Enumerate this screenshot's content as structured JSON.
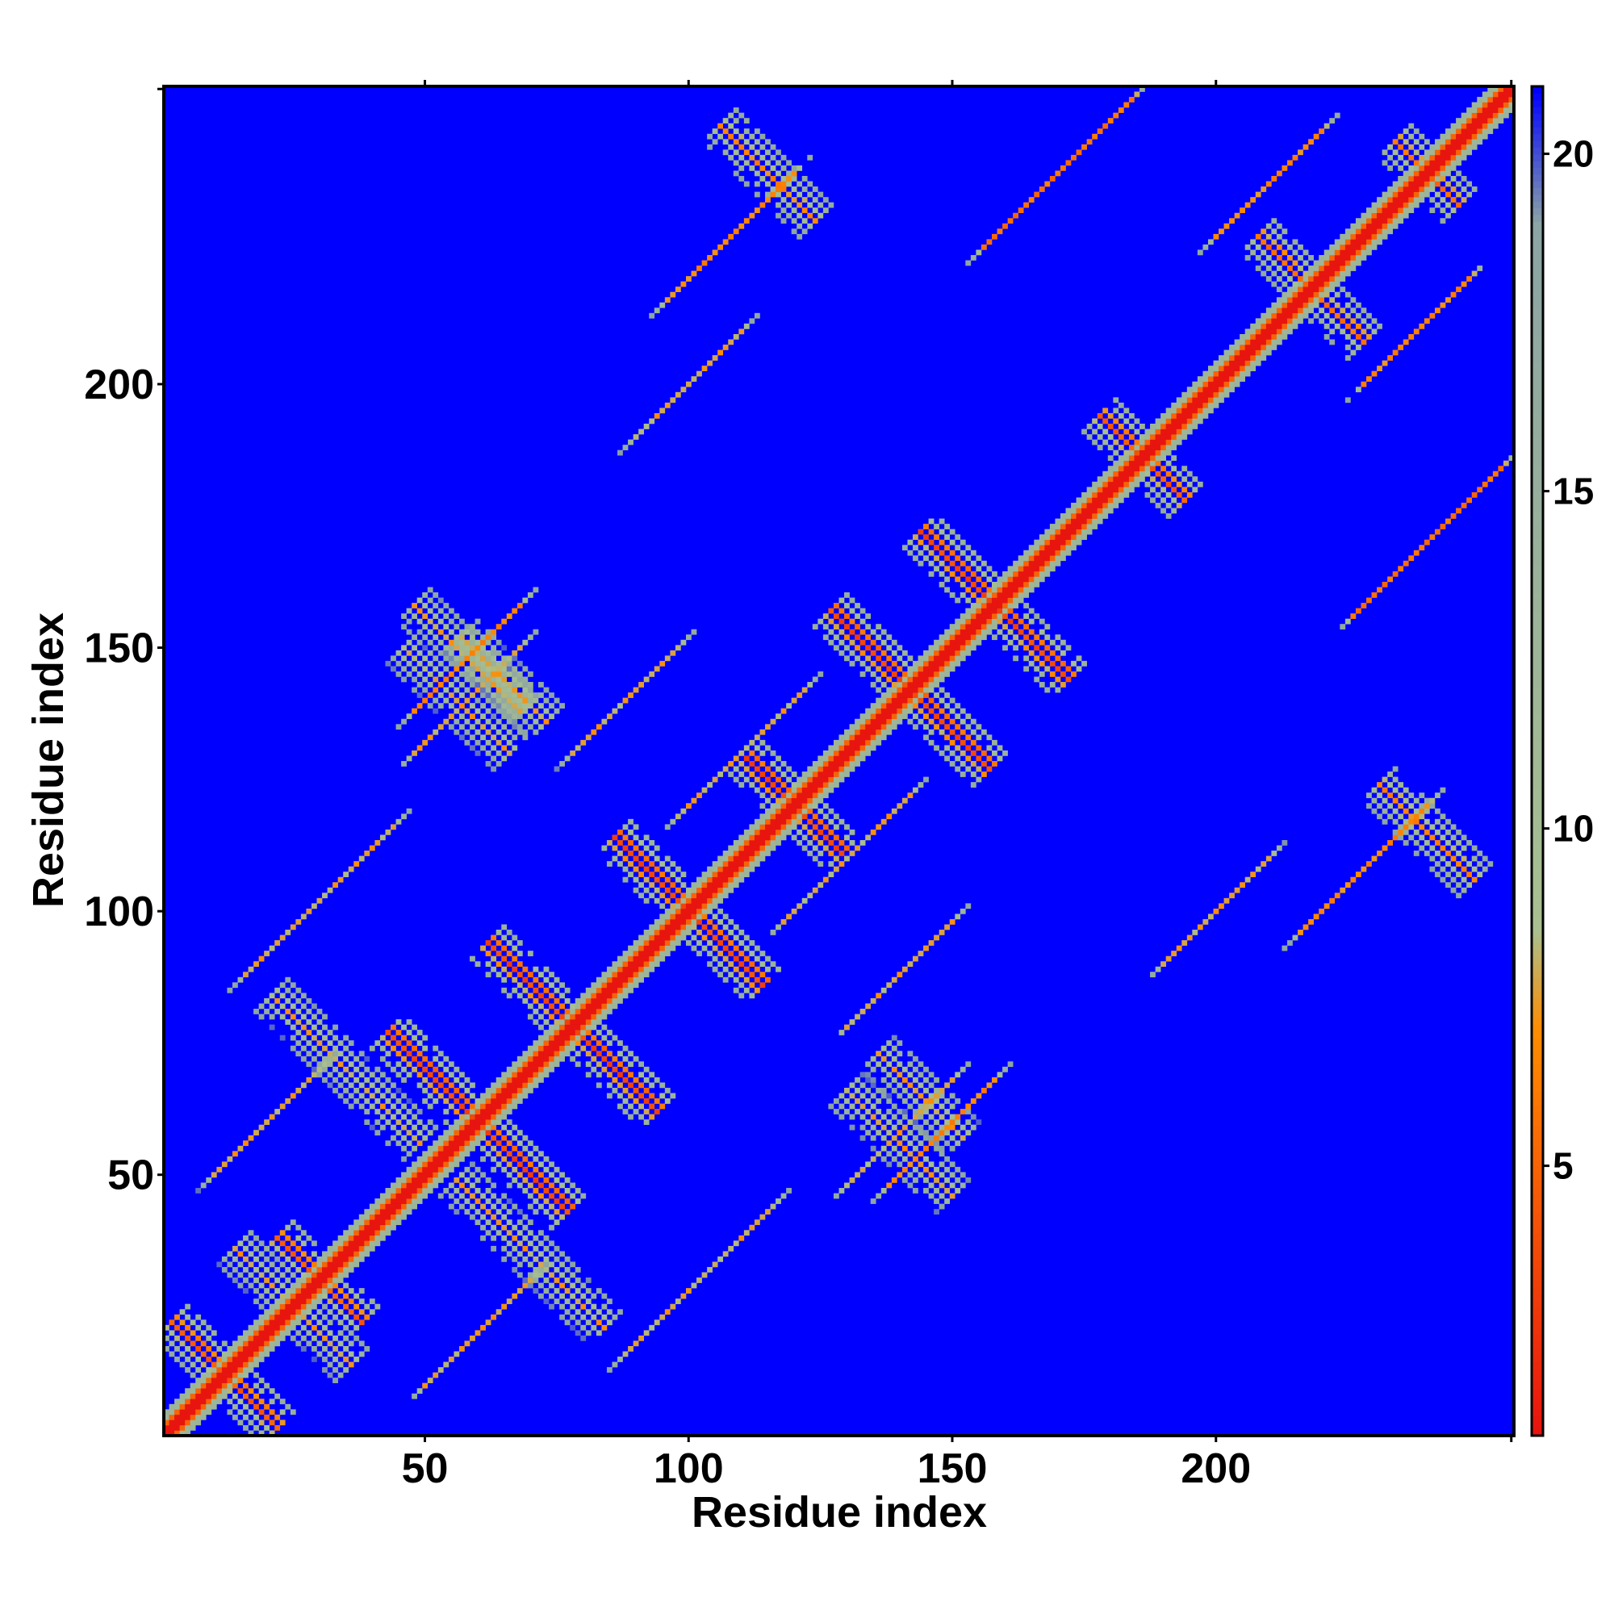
{
  "chart_data": {
    "type": "heatmap",
    "title": "",
    "xlabel": "Residue index",
    "ylabel": "Residue index",
    "xlim": [
      1,
      256
    ],
    "ylim": [
      1,
      256
    ],
    "x_ticks": [
      50,
      100,
      150,
      200
    ],
    "y_ticks": [
      50,
      100,
      150,
      200
    ],
    "colorbar": {
      "range": [
        1,
        21
      ],
      "ticks": [
        5,
        10,
        15,
        20
      ],
      "colors": {
        "low": "#e8140f",
        "mid_low": "#ff8c00",
        "mid": "#a8c090",
        "mid_high": "#8ca4a4",
        "high": "#0000ff"
      }
    },
    "background_color": "#0000ff",
    "diagonal": {
      "from": [
        1,
        1
      ],
      "to": [
        256,
        256
      ],
      "value": 1
    },
    "contact_features": [
      {
        "kind": "antiparallel",
        "center": [
          12,
          12
        ],
        "half_length": 10,
        "value": 4
      },
      {
        "kind": "antiparallel",
        "center": [
          30,
          30
        ],
        "half_length": 8,
        "value": 4
      },
      {
        "kind": "antiparallel",
        "center": [
          60,
          60
        ],
        "half_length": 17,
        "value": 3
      },
      {
        "kind": "antiparallel",
        "center": [
          78,
          78
        ],
        "half_length": 16,
        "value": 3
      },
      {
        "kind": "antiparallel",
        "center": [
          100,
          100
        ],
        "half_length": 14,
        "value": 3
      },
      {
        "kind": "antiparallel",
        "center": [
          120,
          120
        ],
        "half_length": 9,
        "value": 3
      },
      {
        "kind": "antiparallel",
        "center": [
          142,
          142
        ],
        "half_length": 15,
        "value": 3
      },
      {
        "kind": "antiparallel",
        "center": [
          158,
          158
        ],
        "half_length": 14,
        "value": 3
      },
      {
        "kind": "antiparallel",
        "center": [
          186,
          186
        ],
        "half_length": 8,
        "value": 4
      },
      {
        "kind": "antiparallel",
        "center": [
          218,
          218
        ],
        "half_length": 10,
        "value": 5
      },
      {
        "kind": "antiparallel",
        "center": [
          240,
          240
        ],
        "half_length": 6,
        "value": 5
      },
      {
        "kind": "parallel",
        "center": [
          58,
          148
        ],
        "half_length": 10,
        "value": 6
      },
      {
        "kind": "parallel",
        "center": [
          148,
          58
        ],
        "half_length": 10,
        "value": 6
      },
      {
        "kind": "antiparallel",
        "center": [
          58,
          148
        ],
        "half_length": 10,
        "value": 7
      },
      {
        "kind": "parallel",
        "center": [
          88,
          140
        ],
        "half_length": 10,
        "value": 7
      },
      {
        "kind": "parallel",
        "center": [
          140,
          88
        ],
        "half_length": 10,
        "value": 7
      },
      {
        "kind": "parallel",
        "center": [
          140,
          58
        ],
        "half_length": 10,
        "value": 7
      },
      {
        "kind": "parallel",
        "center": [
          58,
          140
        ],
        "half_length": 10,
        "value": 7
      },
      {
        "kind": "parallel",
        "center": [
          130,
          110
        ],
        "half_length": 12,
        "value": 7
      },
      {
        "kind": "parallel",
        "center": [
          110,
          130
        ],
        "half_length": 12,
        "value": 7
      },
      {
        "kind": "antiparallel",
        "center": [
          65,
          144
        ],
        "half_length": 8,
        "value": 7
      },
      {
        "kind": "antiparallel",
        "center": [
          144,
          65
        ],
        "half_length": 8,
        "value": 7
      },
      {
        "kind": "parallel",
        "center": [
          108,
          228
        ],
        "half_length": 12,
        "value": 6
      },
      {
        "kind": "parallel",
        "center": [
          228,
          108
        ],
        "half_length": 12,
        "value": 6
      },
      {
        "kind": "parallel",
        "center": [
          170,
          240
        ],
        "half_length": 14,
        "value": 5
      },
      {
        "kind": "parallel",
        "center": [
          240,
          170
        ],
        "half_length": 14,
        "value": 5
      },
      {
        "kind": "parallel",
        "center": [
          210,
          238
        ],
        "half_length": 10,
        "value": 6
      },
      {
        "kind": "parallel",
        "center": [
          238,
          210
        ],
        "half_length": 10,
        "value": 6
      },
      {
        "kind": "antiparallel",
        "center": [
          240,
          115
        ],
        "half_length": 9,
        "value": 6
      },
      {
        "kind": "antiparallel",
        "center": [
          115,
          240
        ],
        "half_length": 9,
        "value": 6
      },
      {
        "kind": "parallel",
        "center": [
          30,
          102
        ],
        "half_length": 14,
        "value": 7
      },
      {
        "kind": "parallel",
        "center": [
          102,
          30
        ],
        "half_length": 14,
        "value": 7
      },
      {
        "kind": "antiparallel",
        "center": [
          140,
          56
        ],
        "half_length": 10,
        "value": 7
      },
      {
        "kind": "antiparallel",
        "center": [
          56,
          140
        ],
        "half_length": 10,
        "value": 7
      },
      {
        "kind": "parallel",
        "center": [
          200,
          100
        ],
        "half_length": 10,
        "value": 7
      },
      {
        "kind": "parallel",
        "center": [
          100,
          200
        ],
        "half_length": 10,
        "value": 7
      },
      {
        "kind": "antiparallel",
        "center": [
          35,
          70
        ],
        "half_length": 14,
        "value": 7
      },
      {
        "kind": "antiparallel",
        "center": [
          70,
          35
        ],
        "half_length": 14,
        "value": 7
      },
      {
        "kind": "parallel",
        "center": [
          20,
          60
        ],
        "half_length": 10,
        "value": 7
      },
      {
        "kind": "parallel",
        "center": [
          60,
          20
        ],
        "half_length": 10,
        "value": 7
      },
      {
        "kind": "antiparallel",
        "center": [
          20,
          30
        ],
        "half_length": 6,
        "value": 7
      },
      {
        "kind": "antiparallel",
        "center": [
          30,
          20
        ],
        "half_length": 6,
        "value": 7
      }
    ]
  }
}
